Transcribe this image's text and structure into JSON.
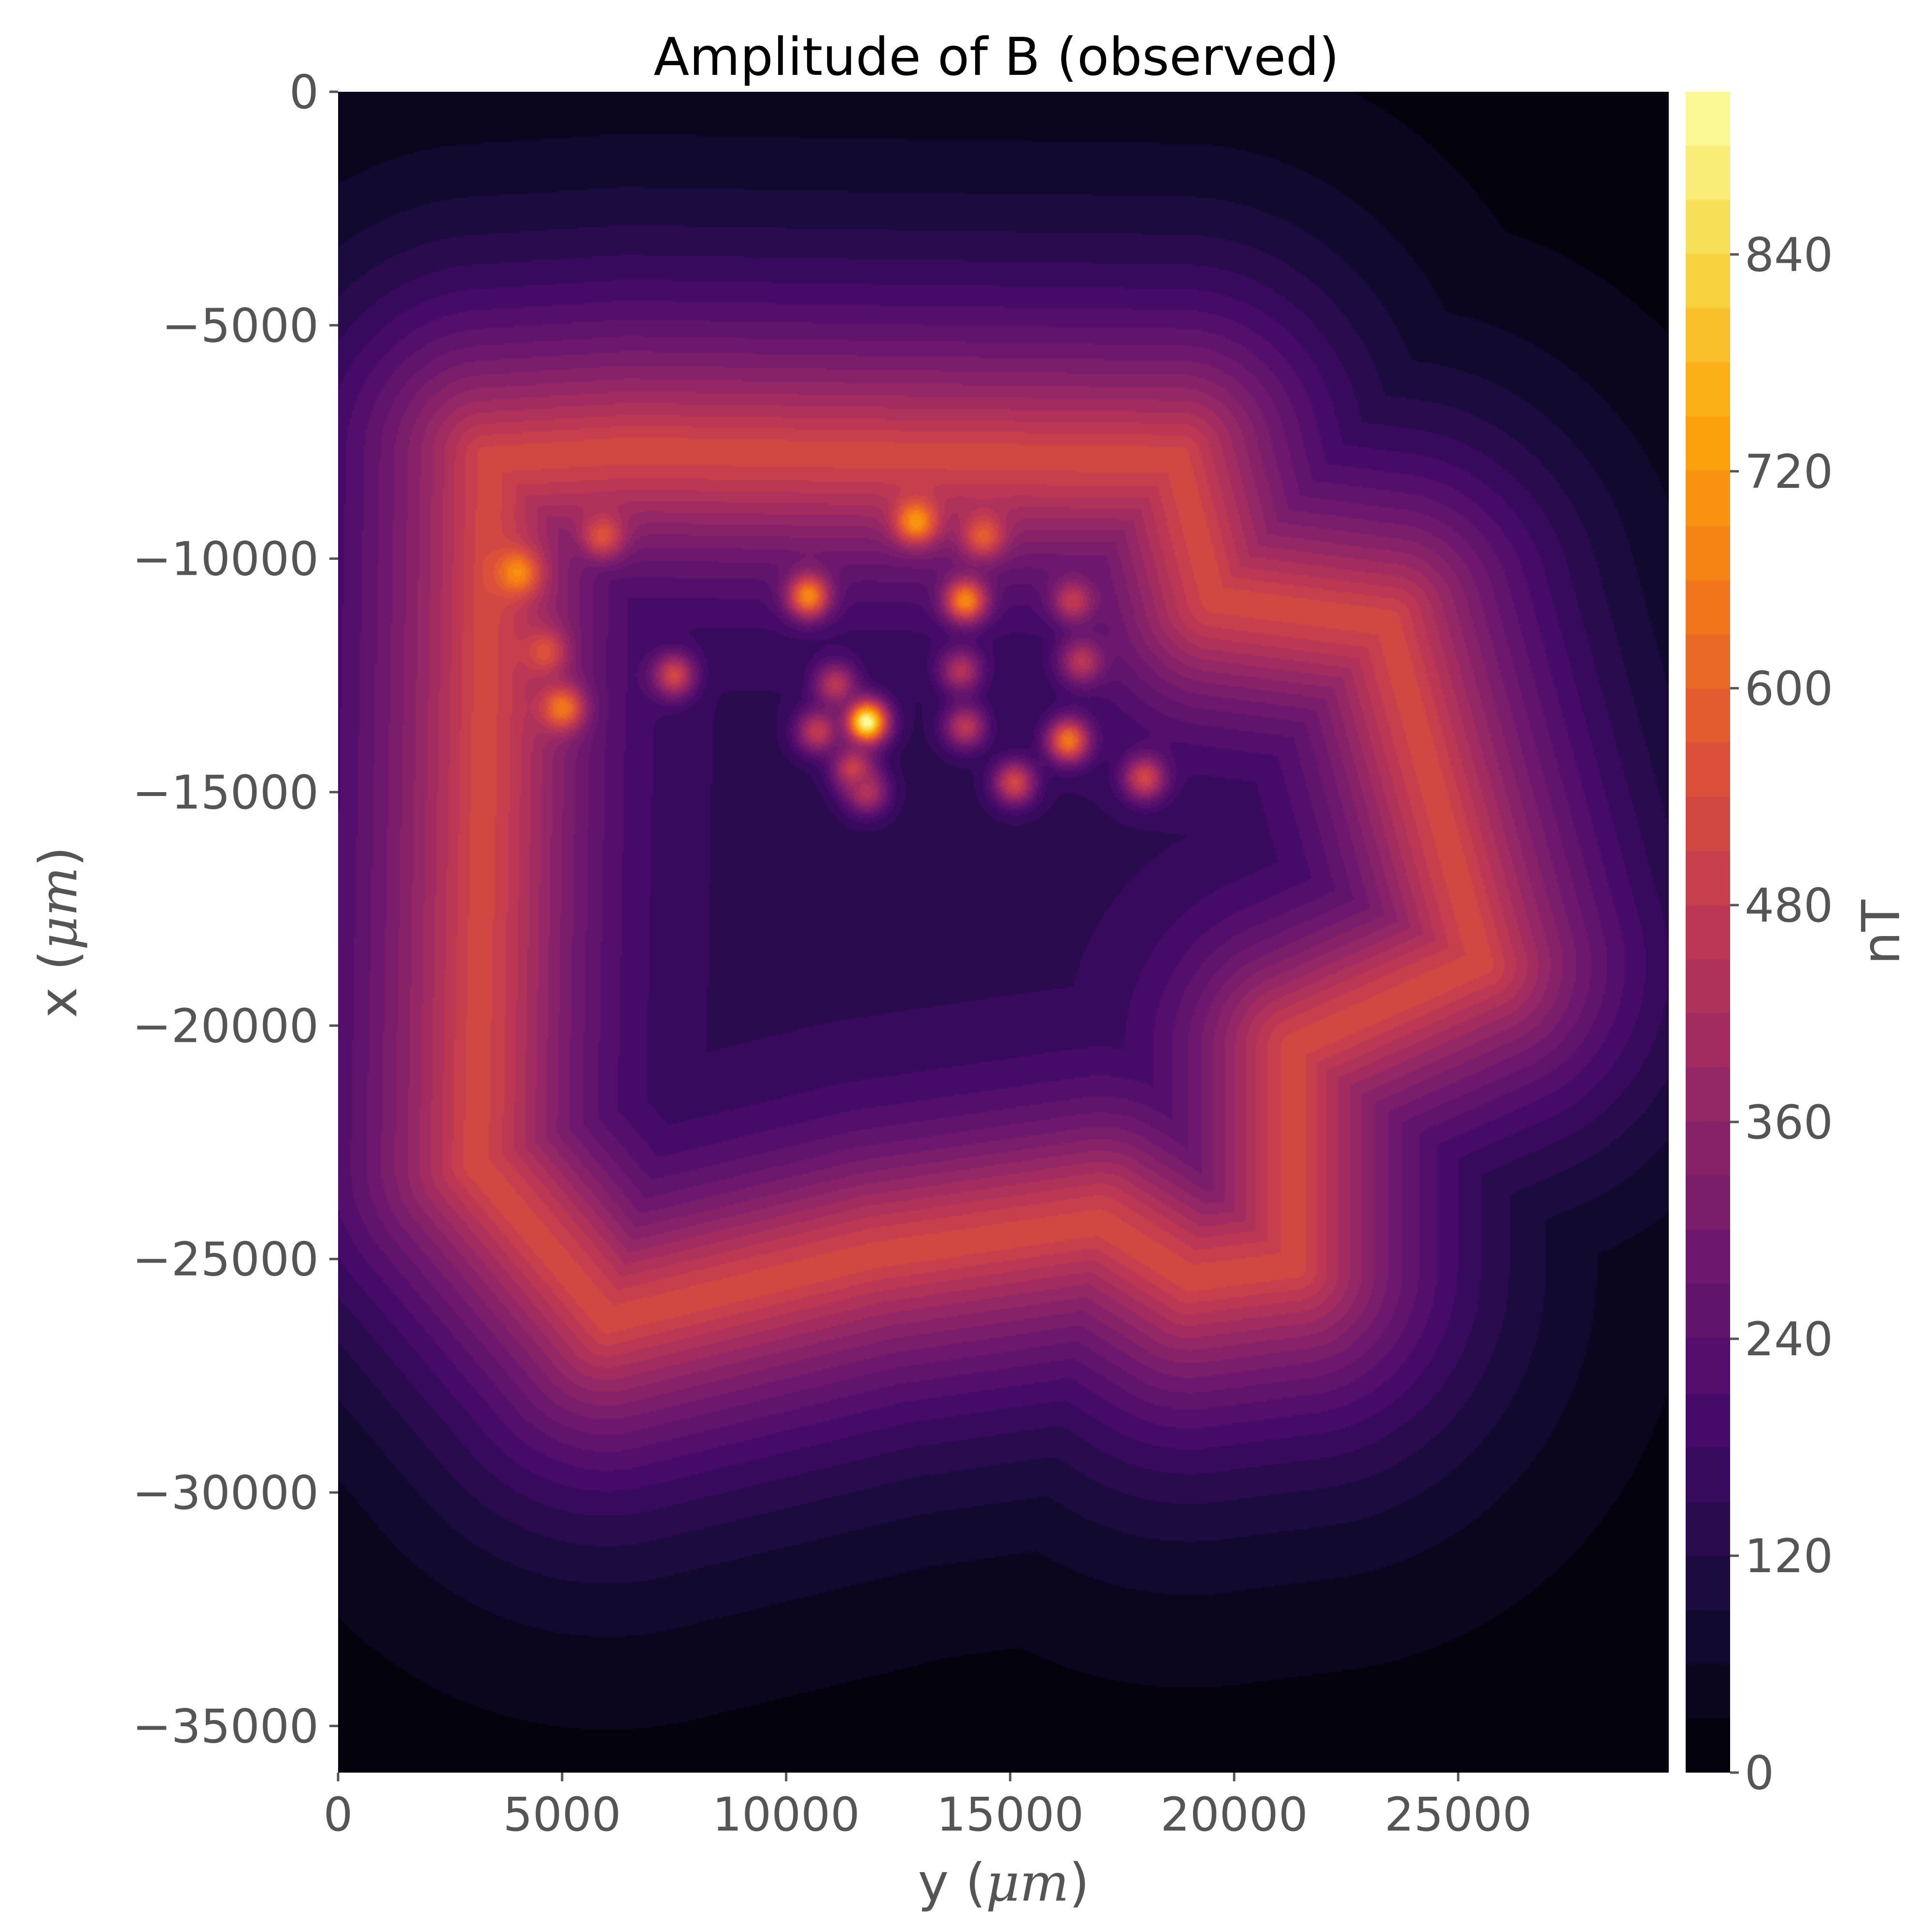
{
  "chart_data": {
    "type": "heatmap",
    "title": "Amplitude of B (observed)",
    "xlabel": {
      "pre": "y (",
      "unit": "μm",
      "post": ")"
    },
    "ylabel": {
      "pre": "x (",
      "unit": "μm",
      "post": ")"
    },
    "xlim": [
      0,
      29700
    ],
    "ylim": [
      -36000,
      0
    ],
    "xticks": [
      0,
      5000,
      10000,
      15000,
      20000,
      25000
    ],
    "xtick_labels": [
      "0",
      "5000",
      "10000",
      "15000",
      "20000",
      "25000"
    ],
    "yticks": [
      0,
      -5000,
      -10000,
      -15000,
      -20000,
      -25000,
      -30000,
      -35000
    ],
    "ytick_labels": [
      "0",
      "−5000",
      "−10000",
      "−15000",
      "−20000",
      "−25000",
      "−30000",
      "−35000"
    ],
    "colormap": "inferno",
    "colorbar": {
      "label": "nT",
      "range": [
        0,
        930
      ],
      "ticks": [
        0,
        120,
        240,
        360,
        480,
        600,
        720,
        840
      ],
      "tick_labels": [
        "0",
        "120",
        "240",
        "360",
        "480",
        "600",
        "720",
        "840"
      ],
      "levels": 31
    },
    "field": {
      "background_nT": 5,
      "ring_peak_nT": 530,
      "center_nT": 140,
      "ring_path_yx": [
        [
          3300,
          -7800
        ],
        [
          6500,
          -7600
        ],
        [
          12000,
          -7700
        ],
        [
          18800,
          -7800
        ],
        [
          19600,
          -10800
        ],
        [
          23500,
          -11300
        ],
        [
          25600,
          -18700
        ],
        [
          21400,
          -20500
        ],
        [
          21400,
          -25200
        ],
        [
          19000,
          -25500
        ],
        [
          17000,
          -24300
        ],
        [
          12000,
          -25000
        ],
        [
          6000,
          -26400
        ],
        [
          3000,
          -23000
        ],
        [
          3300,
          -7800
        ]
      ],
      "hotspots": [
        {
          "y": 4000,
          "x": -10300,
          "nT": 700
        },
        {
          "y": 5000,
          "x": -13200,
          "nT": 660
        },
        {
          "y": 5900,
          "x": -9500,
          "nT": 560
        },
        {
          "y": 4600,
          "x": -12000,
          "nT": 560
        },
        {
          "y": 7500,
          "x": -12500,
          "nT": 520
        },
        {
          "y": 10500,
          "x": -10800,
          "nT": 690
        },
        {
          "y": 11800,
          "x": -13500,
          "nT": 930
        },
        {
          "y": 11100,
          "x": -12700,
          "nT": 460
        },
        {
          "y": 10700,
          "x": -13700,
          "nT": 480
        },
        {
          "y": 11500,
          "x": -14500,
          "nT": 500
        },
        {
          "y": 11800,
          "x": -15000,
          "nT": 440
        },
        {
          "y": 12900,
          "x": -9200,
          "nT": 720
        },
        {
          "y": 14000,
          "x": -10900,
          "nT": 690
        },
        {
          "y": 14400,
          "x": -9500,
          "nT": 590
        },
        {
          "y": 13900,
          "x": -12400,
          "nT": 440
        },
        {
          "y": 14000,
          "x": -13600,
          "nT": 460
        },
        {
          "y": 15100,
          "x": -14800,
          "nT": 520
        },
        {
          "y": 16300,
          "x": -13900,
          "nT": 650
        },
        {
          "y": 16400,
          "x": -10900,
          "nT": 480
        },
        {
          "y": 16600,
          "x": -12200,
          "nT": 460
        },
        {
          "y": 18000,
          "x": -14700,
          "nT": 520
        }
      ]
    }
  }
}
